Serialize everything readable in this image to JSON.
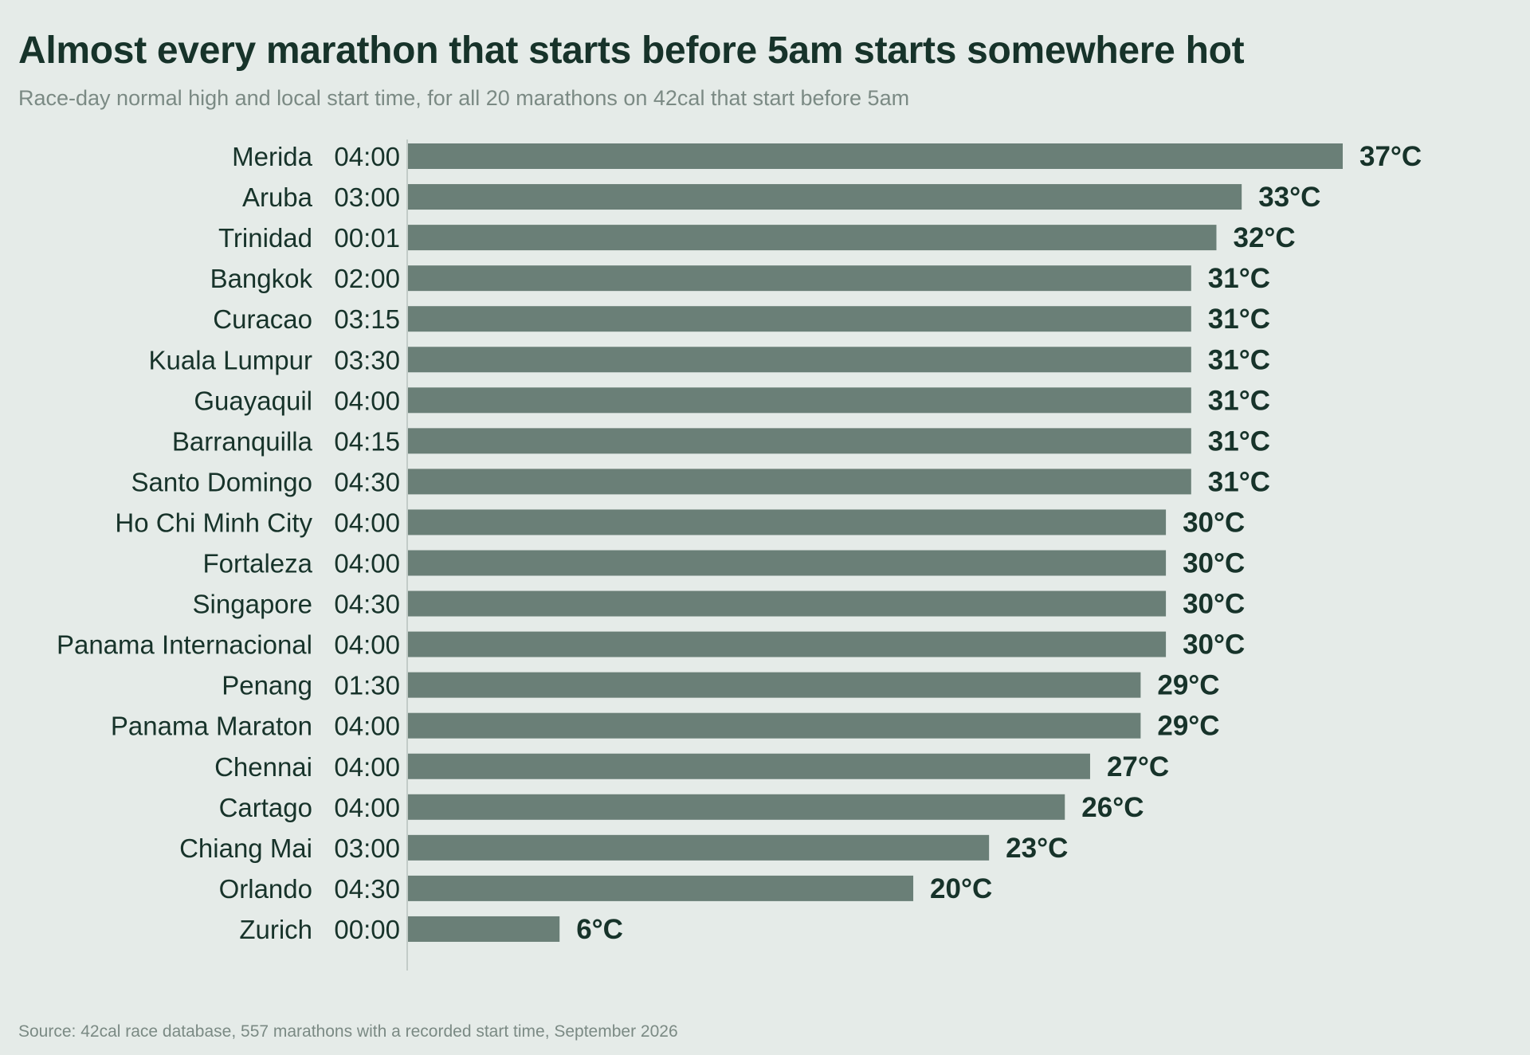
{
  "title": "Almost every marathon that starts before 5am starts somewhere hot",
  "subtitle": "Race-day normal high and local start time, for all 20 marathons on 42cal that start before 5am",
  "source": "Source: 42cal race database, 557 marathons with a recorded start time, September 2026",
  "colors": {
    "bar": "#6a7f77",
    "text": "#17332a",
    "muted": "#7b8a84",
    "axis": "#c3ccc8",
    "background": "#e5ebe8"
  },
  "chart_data": {
    "type": "bar",
    "orientation": "horizontal",
    "value_unit": "°C",
    "xlim": [
      0,
      37
    ],
    "grid": false,
    "rows": [
      {
        "city": "Merida",
        "start": "04:00",
        "value": 37,
        "label": "37°C"
      },
      {
        "city": "Aruba",
        "start": "03:00",
        "value": 33,
        "label": "33°C"
      },
      {
        "city": "Trinidad",
        "start": "00:01",
        "value": 32,
        "label": "32°C"
      },
      {
        "city": "Bangkok",
        "start": "02:00",
        "value": 31,
        "label": "31°C"
      },
      {
        "city": "Curacao",
        "start": "03:15",
        "value": 31,
        "label": "31°C"
      },
      {
        "city": "Kuala Lumpur",
        "start": "03:30",
        "value": 31,
        "label": "31°C"
      },
      {
        "city": "Guayaquil",
        "start": "04:00",
        "value": 31,
        "label": "31°C"
      },
      {
        "city": "Barranquilla",
        "start": "04:15",
        "value": 31,
        "label": "31°C"
      },
      {
        "city": "Santo Domingo",
        "start": "04:30",
        "value": 31,
        "label": "31°C"
      },
      {
        "city": "Ho Chi Minh City",
        "start": "04:00",
        "value": 30,
        "label": "30°C"
      },
      {
        "city": "Fortaleza",
        "start": "04:00",
        "value": 30,
        "label": "30°C"
      },
      {
        "city": "Singapore",
        "start": "04:30",
        "value": 30,
        "label": "30°C"
      },
      {
        "city": "Panama Internacional",
        "start": "04:00",
        "value": 30,
        "label": "30°C"
      },
      {
        "city": "Penang",
        "start": "01:30",
        "value": 29,
        "label": "29°C"
      },
      {
        "city": "Panama Maraton",
        "start": "04:00",
        "value": 29,
        "label": "29°C"
      },
      {
        "city": "Chennai",
        "start": "04:00",
        "value": 27,
        "label": "27°C"
      },
      {
        "city": "Cartago",
        "start": "04:00",
        "value": 26,
        "label": "26°C"
      },
      {
        "city": "Chiang Mai",
        "start": "03:00",
        "value": 23,
        "label": "23°C"
      },
      {
        "city": "Orlando",
        "start": "04:30",
        "value": 20,
        "label": "20°C"
      },
      {
        "city": "Zurich",
        "start": "00:00",
        "value": 6,
        "label": "6°C"
      }
    ]
  }
}
